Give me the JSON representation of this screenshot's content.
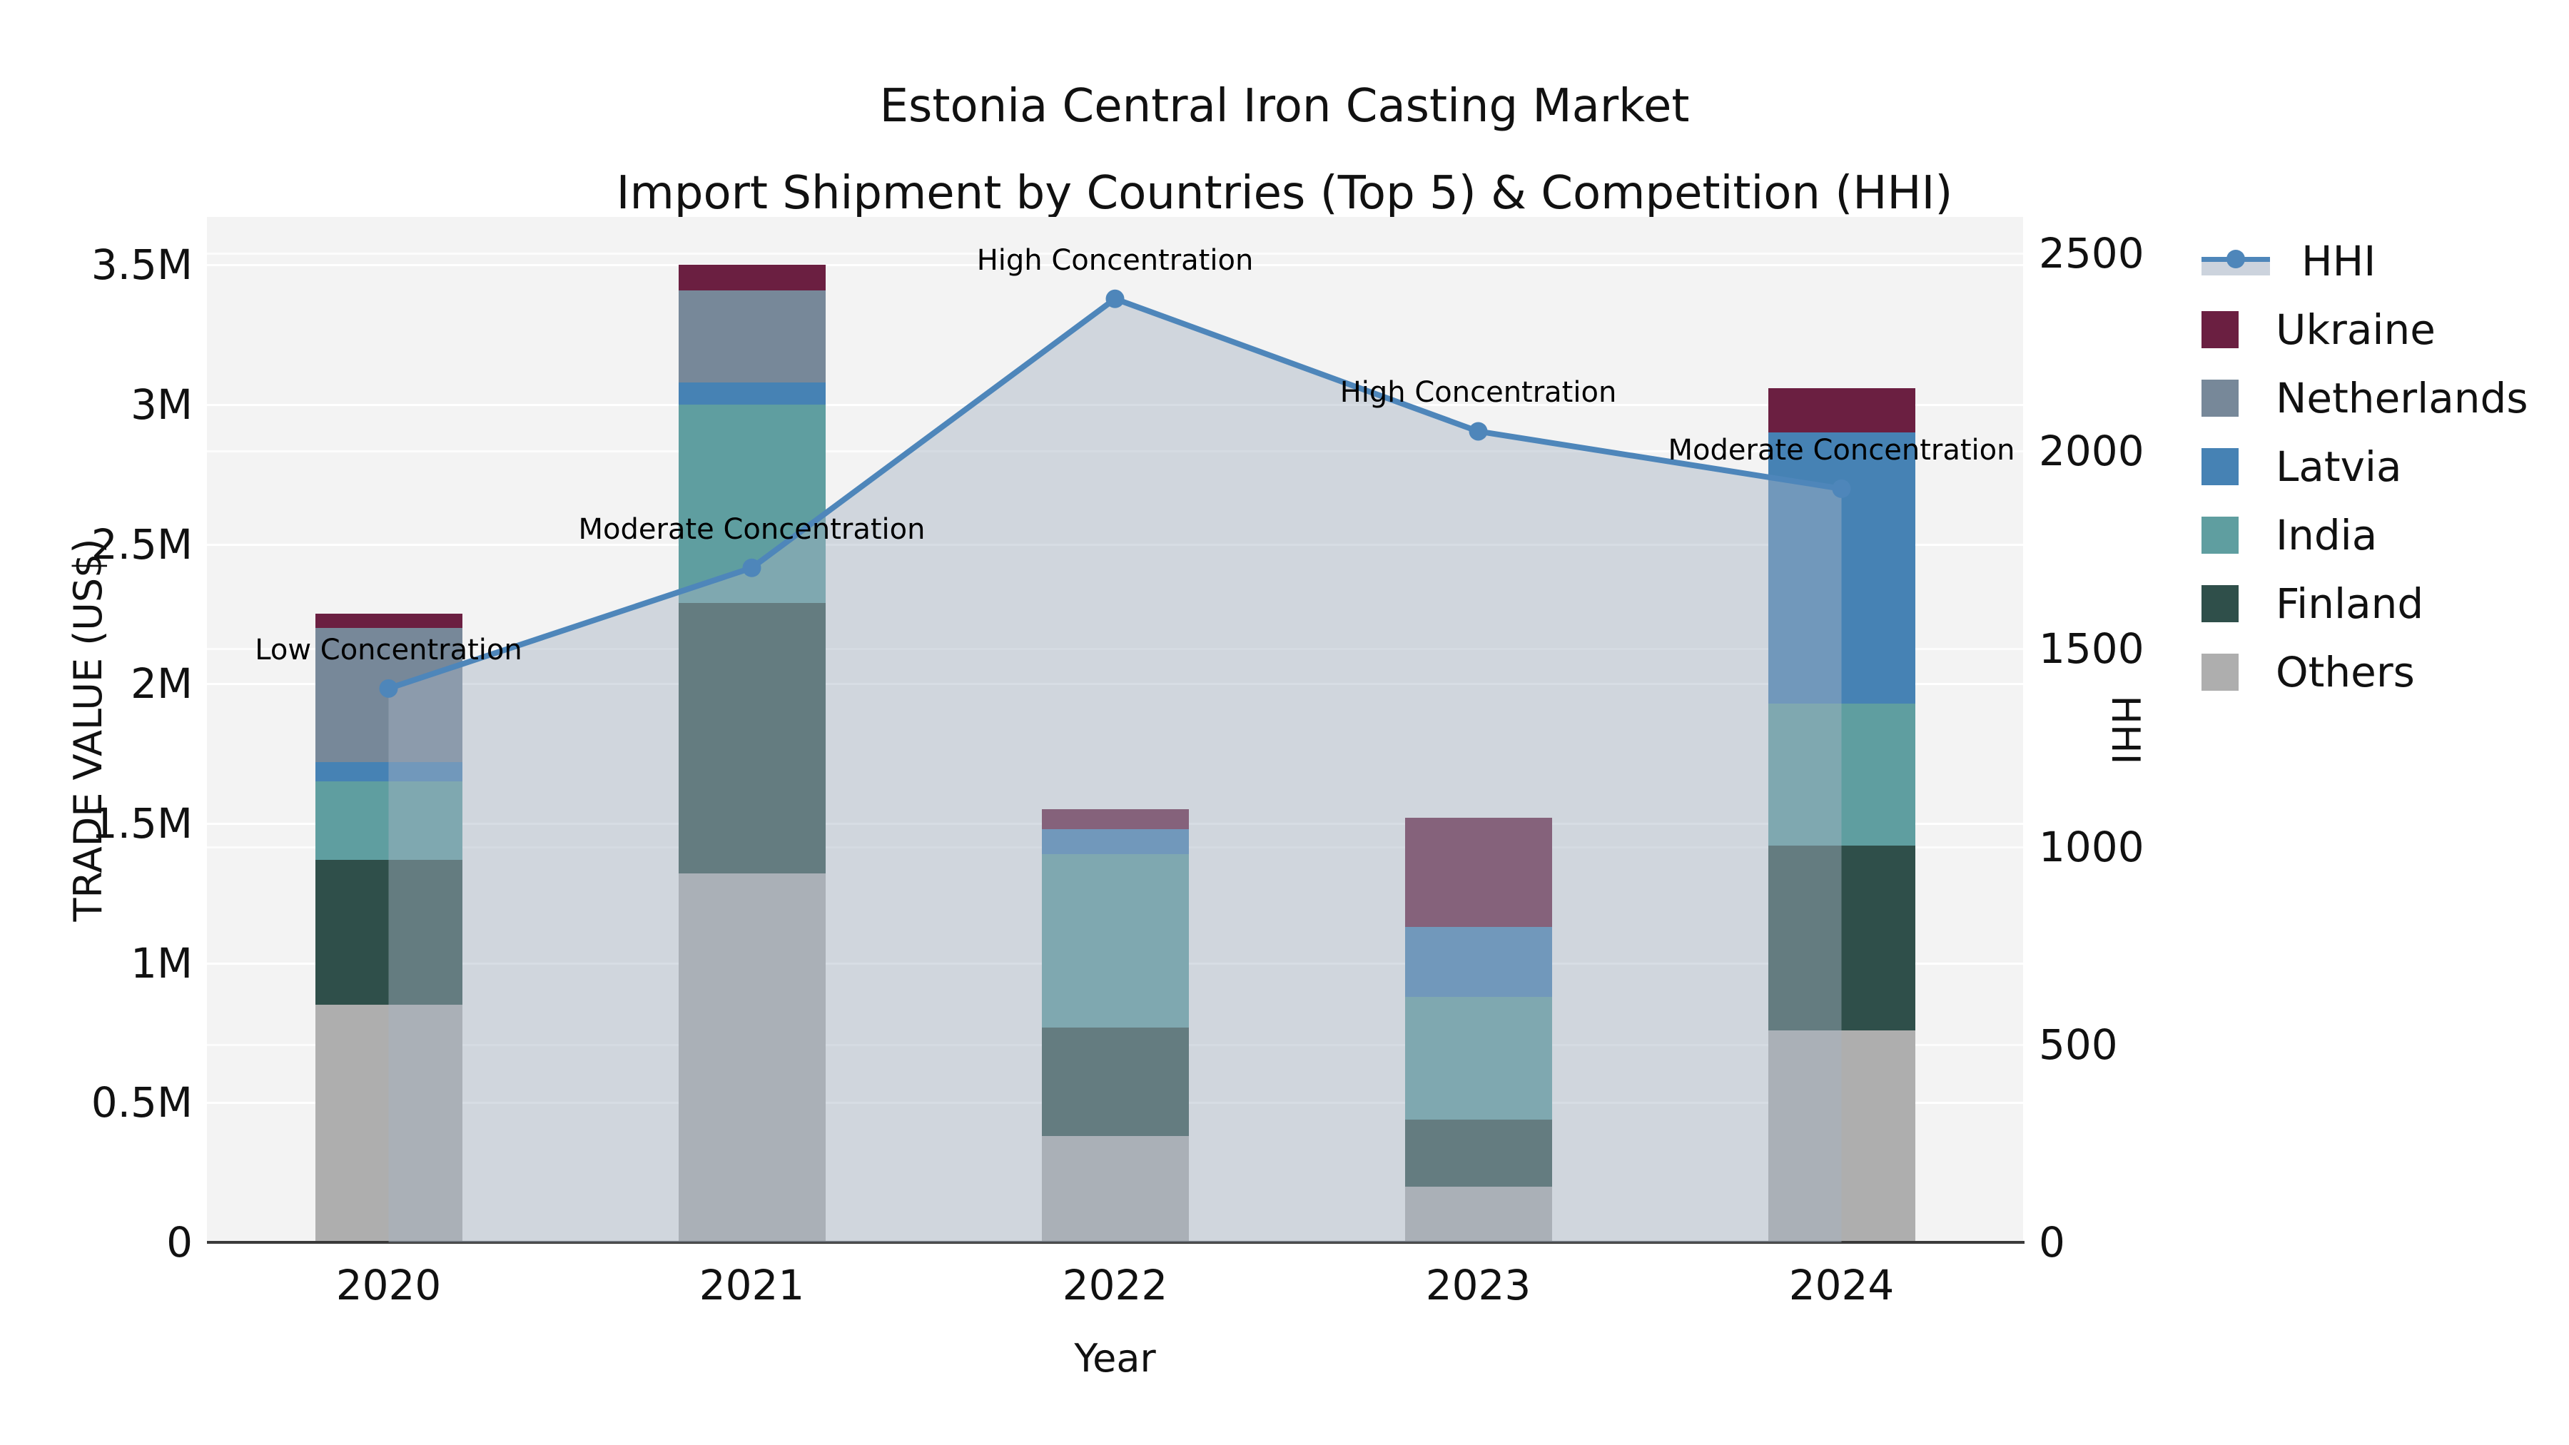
{
  "title": {
    "line1": "Estonia Central Iron Casting Market",
    "line2": "Import Shipment by Countries (Top 5) & Competition (HHI)"
  },
  "axes": {
    "x_label": "Year",
    "y_left_label": "TRADE VALUE (US$)",
    "y_right_label": "HHI",
    "y_left_ticks": [
      {
        "label": "0",
        "value": 0
      },
      {
        "label": "0.5M",
        "value": 0.5
      },
      {
        "label": "1M",
        "value": 1
      },
      {
        "label": "1.5M",
        "value": 1.5
      },
      {
        "label": "2M",
        "value": 2
      },
      {
        "label": "2.5M",
        "value": 2.5
      },
      {
        "label": "3M",
        "value": 3
      },
      {
        "label": "3.5M",
        "value": 3.5
      }
    ],
    "y_left_axis_max": 3.672,
    "y_right_ticks": [
      {
        "label": "0",
        "value": 0
      },
      {
        "label": "500",
        "value": 500
      },
      {
        "label": "1000",
        "value": 1000
      },
      {
        "label": "1500",
        "value": 1500
      },
      {
        "label": "2000",
        "value": 2000
      },
      {
        "label": "2500",
        "value": 2500
      }
    ],
    "y_right_axis_max": 2592
  },
  "chart_data": {
    "type": "combo: stacked bar (left axis, trade value M US$) + line with area fill (right axis, HHI)",
    "categories": [
      "2020",
      "2021",
      "2022",
      "2023",
      "2024"
    ],
    "bar_unit": "million US$",
    "stack_order_bottom_to_top": [
      "Others",
      "Finland",
      "India",
      "Latvia",
      "Netherlands",
      "Ukraine"
    ],
    "series": [
      {
        "name": "Others",
        "color": "#AEAEAE",
        "values": [
          0.85,
          1.32,
          0.38,
          0.2,
          0.76
        ]
      },
      {
        "name": "Finland",
        "color": "#2F4F4A",
        "values": [
          0.52,
          0.97,
          0.39,
          0.24,
          0.66
        ]
      },
      {
        "name": "India",
        "color": "#5F9EA0",
        "values": [
          0.28,
          0.71,
          0.62,
          0.44,
          0.51
        ]
      },
      {
        "name": "Latvia",
        "color": "#4682B4",
        "values": [
          0.07,
          0.08,
          0.09,
          0.25,
          0.97
        ]
      },
      {
        "name": "Netherlands",
        "color": "#778899",
        "values": [
          0.48,
          0.33,
          0.0,
          0.0,
          0.0
        ]
      },
      {
        "name": "Ukraine",
        "color": "#6B1F41",
        "values": [
          0.05,
          0.09,
          0.07,
          0.39,
          0.16
        ]
      }
    ],
    "bar_totals": [
      2.25,
      3.5,
      1.55,
      1.52,
      3.06
    ],
    "line_series": {
      "name": "HHI",
      "color": "#4E86BA",
      "area_fill": "rgba(167,180,196,0.45)",
      "values": [
        1400,
        1705,
        2385,
        2050,
        1905
      ]
    },
    "annotations": [
      {
        "category": "2020",
        "text": "Low Concentration"
      },
      {
        "category": "2021",
        "text": "Moderate Concentration"
      },
      {
        "category": "2022",
        "text": "High Concentration"
      },
      {
        "category": "2023",
        "text": "High Concentration"
      },
      {
        "category": "2024",
        "text": "Moderate Concentration"
      }
    ],
    "xlabel": "Year",
    "ylabel_left": "TRADE VALUE (US$)",
    "ylabel_right": "HHI",
    "ylim_left": [
      0,
      3500000
    ],
    "ylim_right": [
      0,
      2500
    ],
    "grid": true,
    "legend_position": "outside-right"
  },
  "legend": {
    "items": [
      {
        "label": "HHI",
        "type": "line",
        "color": "#4E86BA"
      },
      {
        "label": "Ukraine",
        "type": "swatch",
        "color": "#6B1F41"
      },
      {
        "label": "Netherlands",
        "type": "swatch",
        "color": "#778899"
      },
      {
        "label": "Latvia",
        "type": "swatch",
        "color": "#4682B4"
      },
      {
        "label": "India",
        "type": "swatch",
        "color": "#5F9EA0"
      },
      {
        "label": "Finland",
        "type": "swatch",
        "color": "#2F4F4A"
      },
      {
        "label": "Others",
        "type": "swatch",
        "color": "#AEAEAE"
      }
    ]
  },
  "colors": {
    "plot_background": "#f3f3f3",
    "gridline": "#ffffff",
    "axis_line": "#3a3a3a",
    "text": "#111111"
  }
}
